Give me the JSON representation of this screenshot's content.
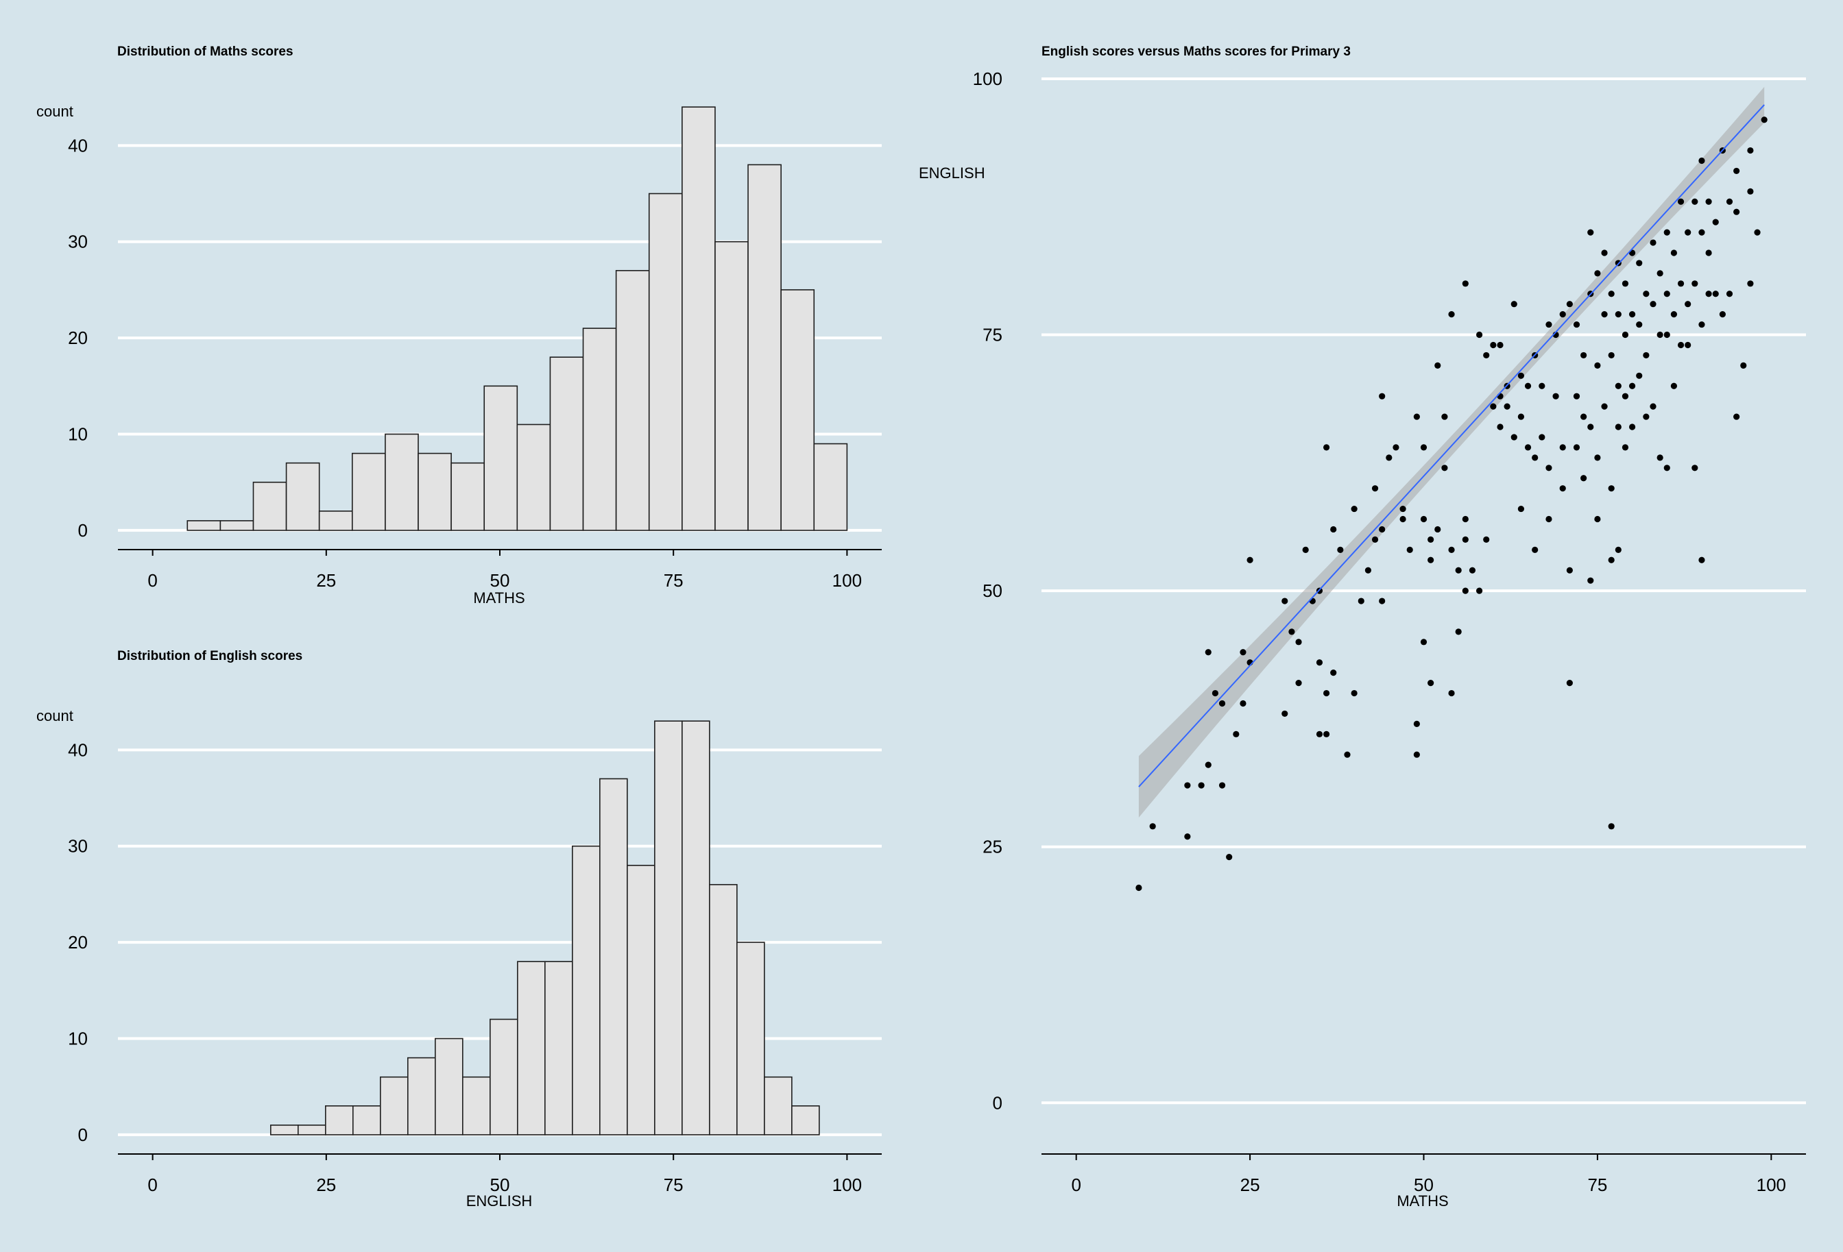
{
  "chart_data": [
    {
      "type": "bar",
      "title": "Distribution of Maths scores",
      "xlabel": "MATHS",
      "ylabel": "count",
      "bin_width": 4.75,
      "bin_start": 5,
      "values": [
        1,
        1,
        5,
        7,
        2,
        8,
        10,
        8,
        7,
        15,
        11,
        18,
        21,
        27,
        35,
        44,
        30,
        38,
        25,
        9
      ],
      "xlim": [
        -5,
        105
      ],
      "ylim": [
        -2,
        48
      ],
      "xticks": [
        "0",
        "25",
        "50",
        "75",
        "100"
      ],
      "yticks": [
        "0",
        "10",
        "20",
        "30",
        "40"
      ],
      "grid": "horizontal"
    },
    {
      "type": "bar",
      "title": "Distribution of English scores",
      "xlabel": "ENGLISH",
      "ylabel": "count",
      "bin_width": 3.95,
      "bin_start": 17,
      "values": [
        1,
        1,
        3,
        3,
        6,
        8,
        10,
        6,
        12,
        18,
        18,
        30,
        37,
        28,
        43,
        43,
        26,
        20,
        6,
        3
      ],
      "xlim": [
        -5,
        105
      ],
      "ylim": [
        -2,
        48
      ],
      "xticks": [
        "0",
        "25",
        "50",
        "75",
        "100"
      ],
      "yticks": [
        "0",
        "10",
        "20",
        "30",
        "40"
      ],
      "grid": "horizontal"
    },
    {
      "type": "scatter",
      "title": "English scores versus Maths scores for Primary 3",
      "xlabel": "MATHS",
      "ylabel": "ENGLISH",
      "xlim": [
        -5,
        105
      ],
      "ylim": [
        -5,
        101
      ],
      "xticks": [
        "0",
        "25",
        "50",
        "75",
        "100"
      ],
      "yticks": [
        "0",
        "25",
        "50",
        "75",
        "100"
      ],
      "grid": "horizontal",
      "points": [
        [
          9,
          21
        ],
        [
          11,
          27
        ],
        [
          16,
          26
        ],
        [
          16,
          31
        ],
        [
          18,
          31
        ],
        [
          19,
          33
        ],
        [
          19,
          44
        ],
        [
          20,
          40
        ],
        [
          21,
          31
        ],
        [
          21,
          39
        ],
        [
          22,
          24
        ],
        [
          23,
          36
        ],
        [
          24,
          39
        ],
        [
          24,
          44
        ],
        [
          25,
          43
        ],
        [
          25,
          53
        ],
        [
          30,
          38
        ],
        [
          30,
          49
        ],
        [
          31,
          46
        ],
        [
          32,
          41
        ],
        [
          32,
          45
        ],
        [
          33,
          54
        ],
        [
          34,
          49
        ],
        [
          35,
          50
        ],
        [
          35,
          43
        ],
        [
          35,
          36
        ],
        [
          36,
          36
        ],
        [
          36,
          40
        ],
        [
          36,
          64
        ],
        [
          37,
          42
        ],
        [
          37,
          56
        ],
        [
          38,
          54
        ],
        [
          39,
          34
        ],
        [
          40,
          40
        ],
        [
          40,
          58
        ],
        [
          41,
          49
        ],
        [
          42,
          52
        ],
        [
          43,
          60
        ],
        [
          43,
          55
        ],
        [
          44,
          56
        ],
        [
          44,
          49
        ],
        [
          44,
          69
        ],
        [
          45,
          63
        ],
        [
          46,
          64
        ],
        [
          47,
          58
        ],
        [
          47,
          57
        ],
        [
          48,
          54
        ],
        [
          49,
          37
        ],
        [
          49,
          34
        ],
        [
          49,
          67
        ],
        [
          50,
          57
        ],
        [
          50,
          45
        ],
        [
          50,
          64
        ],
        [
          51,
          53
        ],
        [
          51,
          41
        ],
        [
          51,
          55
        ],
        [
          52,
          72
        ],
        [
          52,
          56
        ],
        [
          53,
          62
        ],
        [
          53,
          67
        ],
        [
          54,
          77
        ],
        [
          54,
          54
        ],
        [
          54,
          40
        ],
        [
          55,
          52
        ],
        [
          55,
          46
        ],
        [
          56,
          57
        ],
        [
          56,
          50
        ],
        [
          56,
          55
        ],
        [
          56,
          80
        ],
        [
          57,
          52
        ],
        [
          58,
          50
        ],
        [
          58,
          75
        ],
        [
          59,
          55
        ],
        [
          59,
          73
        ],
        [
          60,
          74
        ],
        [
          60,
          68
        ],
        [
          61,
          74
        ],
        [
          61,
          69
        ],
        [
          61,
          66
        ],
        [
          62,
          70
        ],
        [
          62,
          68
        ],
        [
          63,
          78
        ],
        [
          63,
          65
        ],
        [
          64,
          67
        ],
        [
          64,
          71
        ],
        [
          64,
          58
        ],
        [
          65,
          64
        ],
        [
          65,
          70
        ],
        [
          66,
          73
        ],
        [
          66,
          63
        ],
        [
          66,
          54
        ],
        [
          67,
          70
        ],
        [
          67,
          65
        ],
        [
          68,
          76
        ],
        [
          68,
          57
        ],
        [
          68,
          62
        ],
        [
          69,
          75
        ],
        [
          69,
          69
        ],
        [
          70,
          77
        ],
        [
          70,
          64
        ],
        [
          70,
          60
        ],
        [
          71,
          78
        ],
        [
          71,
          52
        ],
        [
          71,
          41
        ],
        [
          72,
          76
        ],
        [
          72,
          69
        ],
        [
          72,
          64
        ],
        [
          73,
          67
        ],
        [
          73,
          73
        ],
        [
          73,
          61
        ],
        [
          74,
          85
        ],
        [
          74,
          79
        ],
        [
          74,
          66
        ],
        [
          74,
          51
        ],
        [
          75,
          81
        ],
        [
          75,
          72
        ],
        [
          75,
          63
        ],
        [
          75,
          57
        ],
        [
          76,
          83
        ],
        [
          76,
          77
        ],
        [
          76,
          68
        ],
        [
          77,
          79
        ],
        [
          77,
          73
        ],
        [
          77,
          60
        ],
        [
          77,
          53
        ],
        [
          77,
          27
        ],
        [
          78,
          82
        ],
        [
          78,
          77
        ],
        [
          78,
          70
        ],
        [
          78,
          66
        ],
        [
          78,
          54
        ],
        [
          79,
          80
        ],
        [
          79,
          75
        ],
        [
          79,
          69
        ],
        [
          79,
          64
        ],
        [
          80,
          83
        ],
        [
          80,
          77
        ],
        [
          80,
          70
        ],
        [
          80,
          66
        ],
        [
          81,
          82
        ],
        [
          81,
          76
        ],
        [
          81,
          71
        ],
        [
          82,
          79
        ],
        [
          82,
          73
        ],
        [
          82,
          67
        ],
        [
          83,
          84
        ],
        [
          83,
          78
        ],
        [
          83,
          68
        ],
        [
          84,
          81
        ],
        [
          84,
          75
        ],
        [
          84,
          63
        ],
        [
          85,
          85
        ],
        [
          85,
          79
        ],
        [
          85,
          75
        ],
        [
          85,
          62
        ],
        [
          86,
          83
        ],
        [
          86,
          77
        ],
        [
          86,
          70
        ],
        [
          87,
          88
        ],
        [
          87,
          80
        ],
        [
          87,
          74
        ],
        [
          88,
          85
        ],
        [
          88,
          78
        ],
        [
          88,
          74
        ],
        [
          89,
          88
        ],
        [
          89,
          80
        ],
        [
          89,
          62
        ],
        [
          90,
          92
        ],
        [
          90,
          85
        ],
        [
          90,
          76
        ],
        [
          90,
          53
        ],
        [
          91,
          88
        ],
        [
          91,
          83
        ],
        [
          91,
          79
        ],
        [
          92,
          86
        ],
        [
          92,
          79
        ],
        [
          93,
          93
        ],
        [
          93,
          77
        ],
        [
          94,
          88
        ],
        [
          94,
          79
        ],
        [
          95,
          91
        ],
        [
          95,
          87
        ],
        [
          95,
          67
        ],
        [
          96,
          72
        ],
        [
          97,
          93
        ],
        [
          97,
          89
        ],
        [
          97,
          80
        ],
        [
          98,
          85
        ],
        [
          99,
          96
        ]
      ],
      "fit": {
        "slope": 0.74,
        "intercept": 24.2,
        "x_range": [
          9,
          99
        ],
        "se_band": true
      }
    }
  ],
  "colors": {
    "background": "#d5e4eb",
    "grid": "#ffffff",
    "bar_fill": "#e3e3e3",
    "bar_stroke": "#1e1e1e",
    "point": "#000000",
    "fit_line": "#3366ff",
    "fit_band": "#a8a8a8"
  }
}
